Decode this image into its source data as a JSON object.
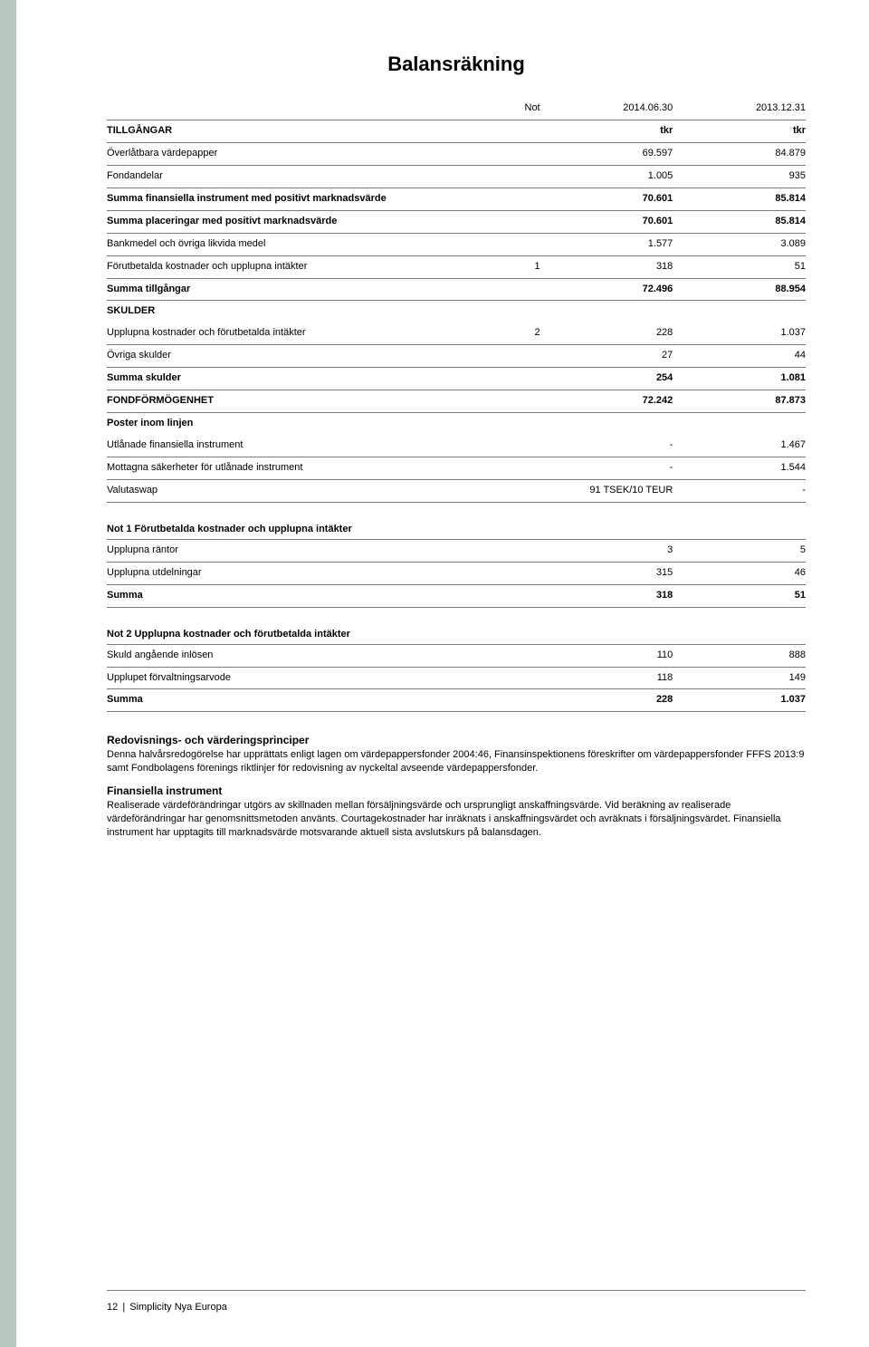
{
  "title": "Balansräkning",
  "columns": {
    "not": "Not",
    "date1": "2014.06.30",
    "date2": "2013.12.31"
  },
  "main_rows": [
    {
      "label": "TILLGÅNGAR",
      "not": "",
      "v1": "tkr",
      "v2": "tkr",
      "bold": true
    },
    {
      "label": "Överlåtbara värdepapper",
      "not": "",
      "v1": "69.597",
      "v2": "84.879"
    },
    {
      "label": "Fondandelar",
      "not": "",
      "v1": "1.005",
      "v2": "935"
    },
    {
      "label": "Summa finansiella instrument med positivt marknadsvärde",
      "not": "",
      "v1": "70.601",
      "v2": "85.814",
      "bold": true
    },
    {
      "label": "Summa placeringar med positivt marknadsvärde",
      "not": "",
      "v1": "70.601",
      "v2": "85.814",
      "bold": true
    },
    {
      "label": "Bankmedel och övriga likvida medel",
      "not": "",
      "v1": "1.577",
      "v2": "3.089"
    },
    {
      "label": "Förutbetalda kostnader och upplupna intäkter",
      "not": "1",
      "v1": "318",
      "v2": "51"
    },
    {
      "label": "Summa tillgångar",
      "not": "",
      "v1": "72.496",
      "v2": "88.954",
      "bold": true
    },
    {
      "label": "SKULDER",
      "not": "",
      "v1": "",
      "v2": "",
      "bold": true,
      "noborder": true
    },
    {
      "label": "Upplupna kostnader och förutbetalda intäkter",
      "not": "2",
      "v1": "228",
      "v2": "1.037"
    },
    {
      "label": "Övriga skulder",
      "not": "",
      "v1": "27",
      "v2": "44"
    },
    {
      "label": "Summa skulder",
      "not": "",
      "v1": "254",
      "v2": "1.081",
      "bold": true
    },
    {
      "label": "FONDFÖRMÖGENHET",
      "not": "",
      "v1": "72.242",
      "v2": "87.873",
      "bold": true
    },
    {
      "label": "Poster inom linjen",
      "not": "",
      "v1": "",
      "v2": "",
      "bold": true,
      "noborder": true
    },
    {
      "label": "Utlånade finansiella instrument",
      "not": "",
      "v1": "-",
      "v2": "1.467"
    },
    {
      "label": "Mottagna säkerheter för utlånade instrument",
      "not": "",
      "v1": "-",
      "v2": "1.544"
    },
    {
      "label": "Valutaswap",
      "not": "",
      "v1": "91 TSEK/10 TEUR",
      "v2": "-"
    }
  ],
  "note1": {
    "title": "Not 1 Förutbetalda kostnader och upplupna intäkter",
    "rows": [
      {
        "label": "Upplupna räntor",
        "v1": "3",
        "v2": "5"
      },
      {
        "label": "Upplupna utdelningar",
        "v1": "315",
        "v2": "46"
      },
      {
        "label": "Summa",
        "v1": "318",
        "v2": "51",
        "bold": true
      }
    ]
  },
  "note2": {
    "title": "Not 2 Upplupna kostnader och förutbetalda intäkter",
    "rows": [
      {
        "label": "Skuld angående inlösen",
        "v1": "110",
        "v2": "888"
      },
      {
        "label": "Upplupet förvaltningsarvode",
        "v1": "118",
        "v2": "149"
      },
      {
        "label": "Summa",
        "v1": "228",
        "v2": "1.037",
        "bold": true
      }
    ]
  },
  "principles": {
    "h1": "Redovisnings- och värderingsprinciper",
    "p1": "Denna halvårsredogörelse har upprättats enligt lagen om värdepappersfonder 2004:46, Finansinspektionens föreskrifter om värdepappersfonder FFFS 2013:9 samt Fondbolagens förenings riktlinjer för redovisning av nyckeltal avseende värdepappersfonder.",
    "h2": "Finansiella instrument",
    "p2": "Realiserade värdeförändringar utgörs av skillnaden mellan försäljningsvärde och ursprungligt anskaffningsvärde. Vid beräkning av realiserade värdeförändringar har genomsnittsmetoden använts. Courtagekostnader har inräknats i anskaffningsvärdet och avräknats i försäljningsvärdet. Finansiella instrument har upptagits till marknadsvärde motsvarande aktuell sista avslutskurs på balansdagen."
  },
  "footer": {
    "page": "12",
    "sep": "|",
    "name": "Simplicity Nya Europa"
  }
}
